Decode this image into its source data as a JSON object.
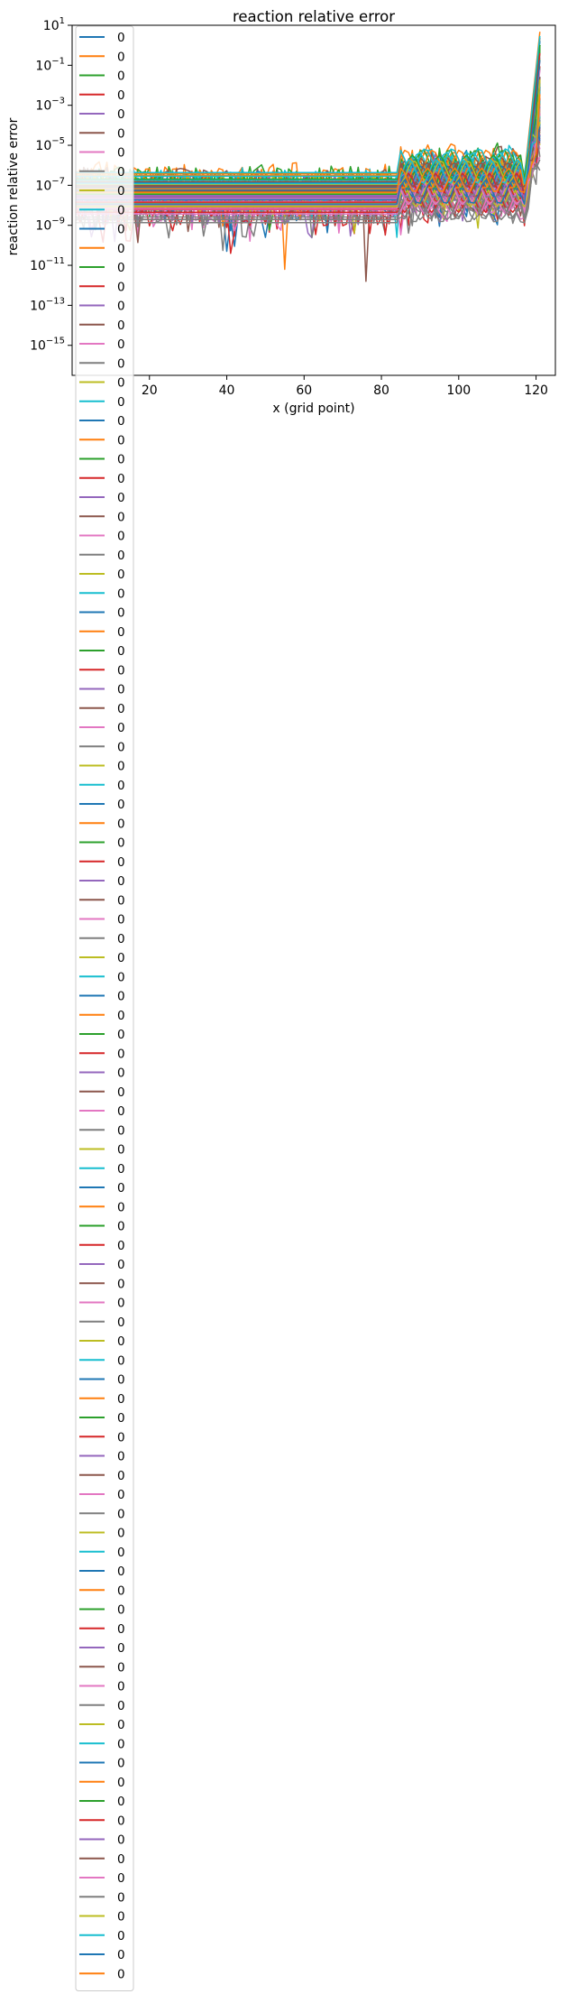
{
  "chart_data": {
    "type": "line",
    "title": "reaction relative error",
    "xlabel": "x (grid point)",
    "ylabel": "reaction relative error",
    "x_ticks": [
      "20",
      "40",
      "60",
      "80",
      "100",
      "120"
    ],
    "x_tick_values": [
      20,
      40,
      60,
      80,
      100,
      120
    ],
    "y_ticks": [
      {
        "base": "10",
        "exp": "1",
        "value": 1
      },
      {
        "base": "10",
        "exp": "−1",
        "value": -1
      },
      {
        "base": "10",
        "exp": "−3",
        "value": -3
      },
      {
        "base": "10",
        "exp": "−5",
        "value": -5
      },
      {
        "base": "10",
        "exp": "−7",
        "value": -7
      },
      {
        "base": "10",
        "exp": "−9",
        "value": -9
      },
      {
        "base": "10",
        "exp": "−11",
        "value": -11
      },
      {
        "base": "10",
        "exp": "−13",
        "value": -13
      },
      {
        "base": "10",
        "exp": "−15",
        "value": -15
      }
    ],
    "xlim": [
      0,
      125
    ],
    "ylim_log10": [
      -16.5,
      1
    ],
    "y_scale": "log",
    "grid": false,
    "legend_position": "upper-left",
    "legend_label": "0",
    "series_count": 102,
    "palette": [
      "#1f77b4",
      "#ff7f0e",
      "#2ca02c",
      "#d62728",
      "#9467bd",
      "#8c564b",
      "#e377c2",
      "#7f7f7f",
      "#bcbd22",
      "#17becf"
    ],
    "series_profiles": [
      {
        "name": "0",
        "baseline_log10": -7.4,
        "spikes": {
          "40": -10.3
        }
      },
      {
        "name": "0",
        "baseline_log10": -6.8,
        "spikes": {
          "55": -11.2
        }
      },
      {
        "name": "0",
        "baseline_log10": -7.0,
        "end_value_log10": 0.0
      },
      {
        "name": "0",
        "baseline_log10": -7.9,
        "spikes": {
          "41": -10.4
        }
      },
      {
        "name": "0",
        "baseline_log10": -7.6
      },
      {
        "name": "0",
        "baseline_log10": -7.2,
        "spikes": {
          "76": -11.8
        }
      },
      {
        "name": "0",
        "baseline_log10": -8.1
      },
      {
        "name": "0",
        "baseline_log10": -8.4
      },
      {
        "name": "0",
        "baseline_log10": -7.5
      },
      {
        "name": "0",
        "baseline_log10": -6.9,
        "spikes": {
          "84": -9.6
        }
      }
    ]
  }
}
